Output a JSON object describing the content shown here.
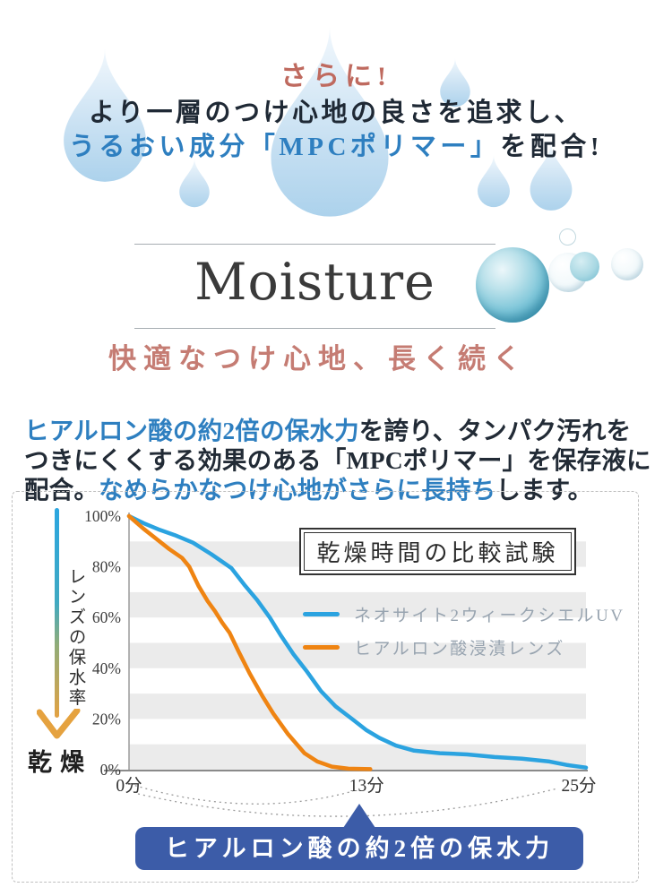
{
  "hero": {
    "tagline": "さらに!",
    "line1": "より一層のつけ心地の良さを追求し、",
    "line2_blue": "うるおい成分「MPCポリマー」",
    "line2_dark": "を配合!"
  },
  "moisture": {
    "heading": "Moisture",
    "subheading": "快適なつけ心地、長く続く"
  },
  "paragraph": {
    "part1_blue": "ヒアルロン酸の約2倍の保水力",
    "part2": "を誇り、タンパク汚れをつきにくくする効果のある「MPCポリマー」を保存液に配合。",
    "part3_blue": "なめらかなつけ心地がさらに長持ち",
    "part4": "します。"
  },
  "colors": {
    "accent_salmon": "#BF6A5F",
    "accent_blue": "#2E7FC0",
    "dark_text": "#1F2935",
    "stripe_gray": "#EBEBEB",
    "axis_gray": "#8A8A8A",
    "legend_text": "#98A4B0",
    "banner_blue": "#3C5CA8",
    "line_blue": "#2BA3E0",
    "line_orange": "#EF8412"
  },
  "chart_data": {
    "type": "line",
    "title": "乾燥時間の比較試験",
    "y_axis_label": "レンズの保水率",
    "y_axis_end_label": "乾燥",
    "xlim": [
      0,
      25
    ],
    "ylim": [
      0,
      100
    ],
    "grid": "horizontal-stripe-bands",
    "legend_position": "center-right",
    "stripe_bands": [
      [
        80,
        90
      ],
      [
        60,
        70
      ],
      [
        40,
        50
      ],
      [
        20,
        30
      ],
      [
        0,
        10
      ]
    ],
    "yticks": [
      {
        "label": "100%",
        "value": 100
      },
      {
        "label": "80%",
        "value": 80
      },
      {
        "label": "60%",
        "value": 60
      },
      {
        "label": "40%",
        "value": 40
      },
      {
        "label": "20%",
        "value": 20
      },
      {
        "label": "0%",
        "value": 0
      }
    ],
    "xticks": [
      {
        "label": "0分",
        "minute": 0
      },
      {
        "label": "13分",
        "minute": 13
      },
      {
        "label": "25分",
        "minute": 25
      }
    ],
    "series": [
      {
        "name": "ネオサイト2ウィークシエルUV",
        "color": "#2BA3E0",
        "points": [
          [
            0,
            100
          ],
          [
            0.8,
            97.2
          ],
          [
            1.6,
            94.8
          ],
          [
            2.5,
            92.5
          ],
          [
            3.5,
            89.5
          ],
          [
            4.5,
            85
          ],
          [
            5.2,
            81.5
          ],
          [
            5.6,
            79.5
          ],
          [
            6.3,
            73
          ],
          [
            7,
            67
          ],
          [
            7.7,
            60
          ],
          [
            8.3,
            53
          ],
          [
            9,
            45.5
          ],
          [
            9.7,
            39
          ],
          [
            10.5,
            31
          ],
          [
            11.3,
            25
          ],
          [
            12.2,
            20
          ],
          [
            13,
            15.5
          ],
          [
            13.7,
            12.5
          ],
          [
            14.6,
            9.5
          ],
          [
            15.6,
            7.5
          ],
          [
            17,
            6.5
          ],
          [
            18.5,
            6
          ],
          [
            20,
            5
          ],
          [
            21.5,
            4.3
          ],
          [
            23,
            3.2
          ],
          [
            24,
            1.8
          ],
          [
            25,
            0.8
          ]
        ]
      },
      {
        "name": "ヒアルロン酸浸漬レンズ",
        "color": "#EF8412",
        "points": [
          [
            0,
            100
          ],
          [
            0.8,
            95
          ],
          [
            1.5,
            91
          ],
          [
            2.2,
            87
          ],
          [
            2.9,
            83.5
          ],
          [
            3.3,
            80
          ],
          [
            3.8,
            72.5
          ],
          [
            4.3,
            66.5
          ],
          [
            4.7,
            62.5
          ],
          [
            5.1,
            58
          ],
          [
            5.5,
            54
          ],
          [
            6,
            46.5
          ],
          [
            6.6,
            38
          ],
          [
            7.3,
            29
          ],
          [
            7.9,
            22
          ],
          [
            8.7,
            14
          ],
          [
            9.6,
            6.5
          ],
          [
            10.3,
            3.2
          ],
          [
            11.1,
            1.2
          ],
          [
            12,
            0.4
          ],
          [
            13.2,
            0.2
          ]
        ]
      }
    ],
    "callout": "ヒアルロン酸の約2倍の保水力"
  }
}
